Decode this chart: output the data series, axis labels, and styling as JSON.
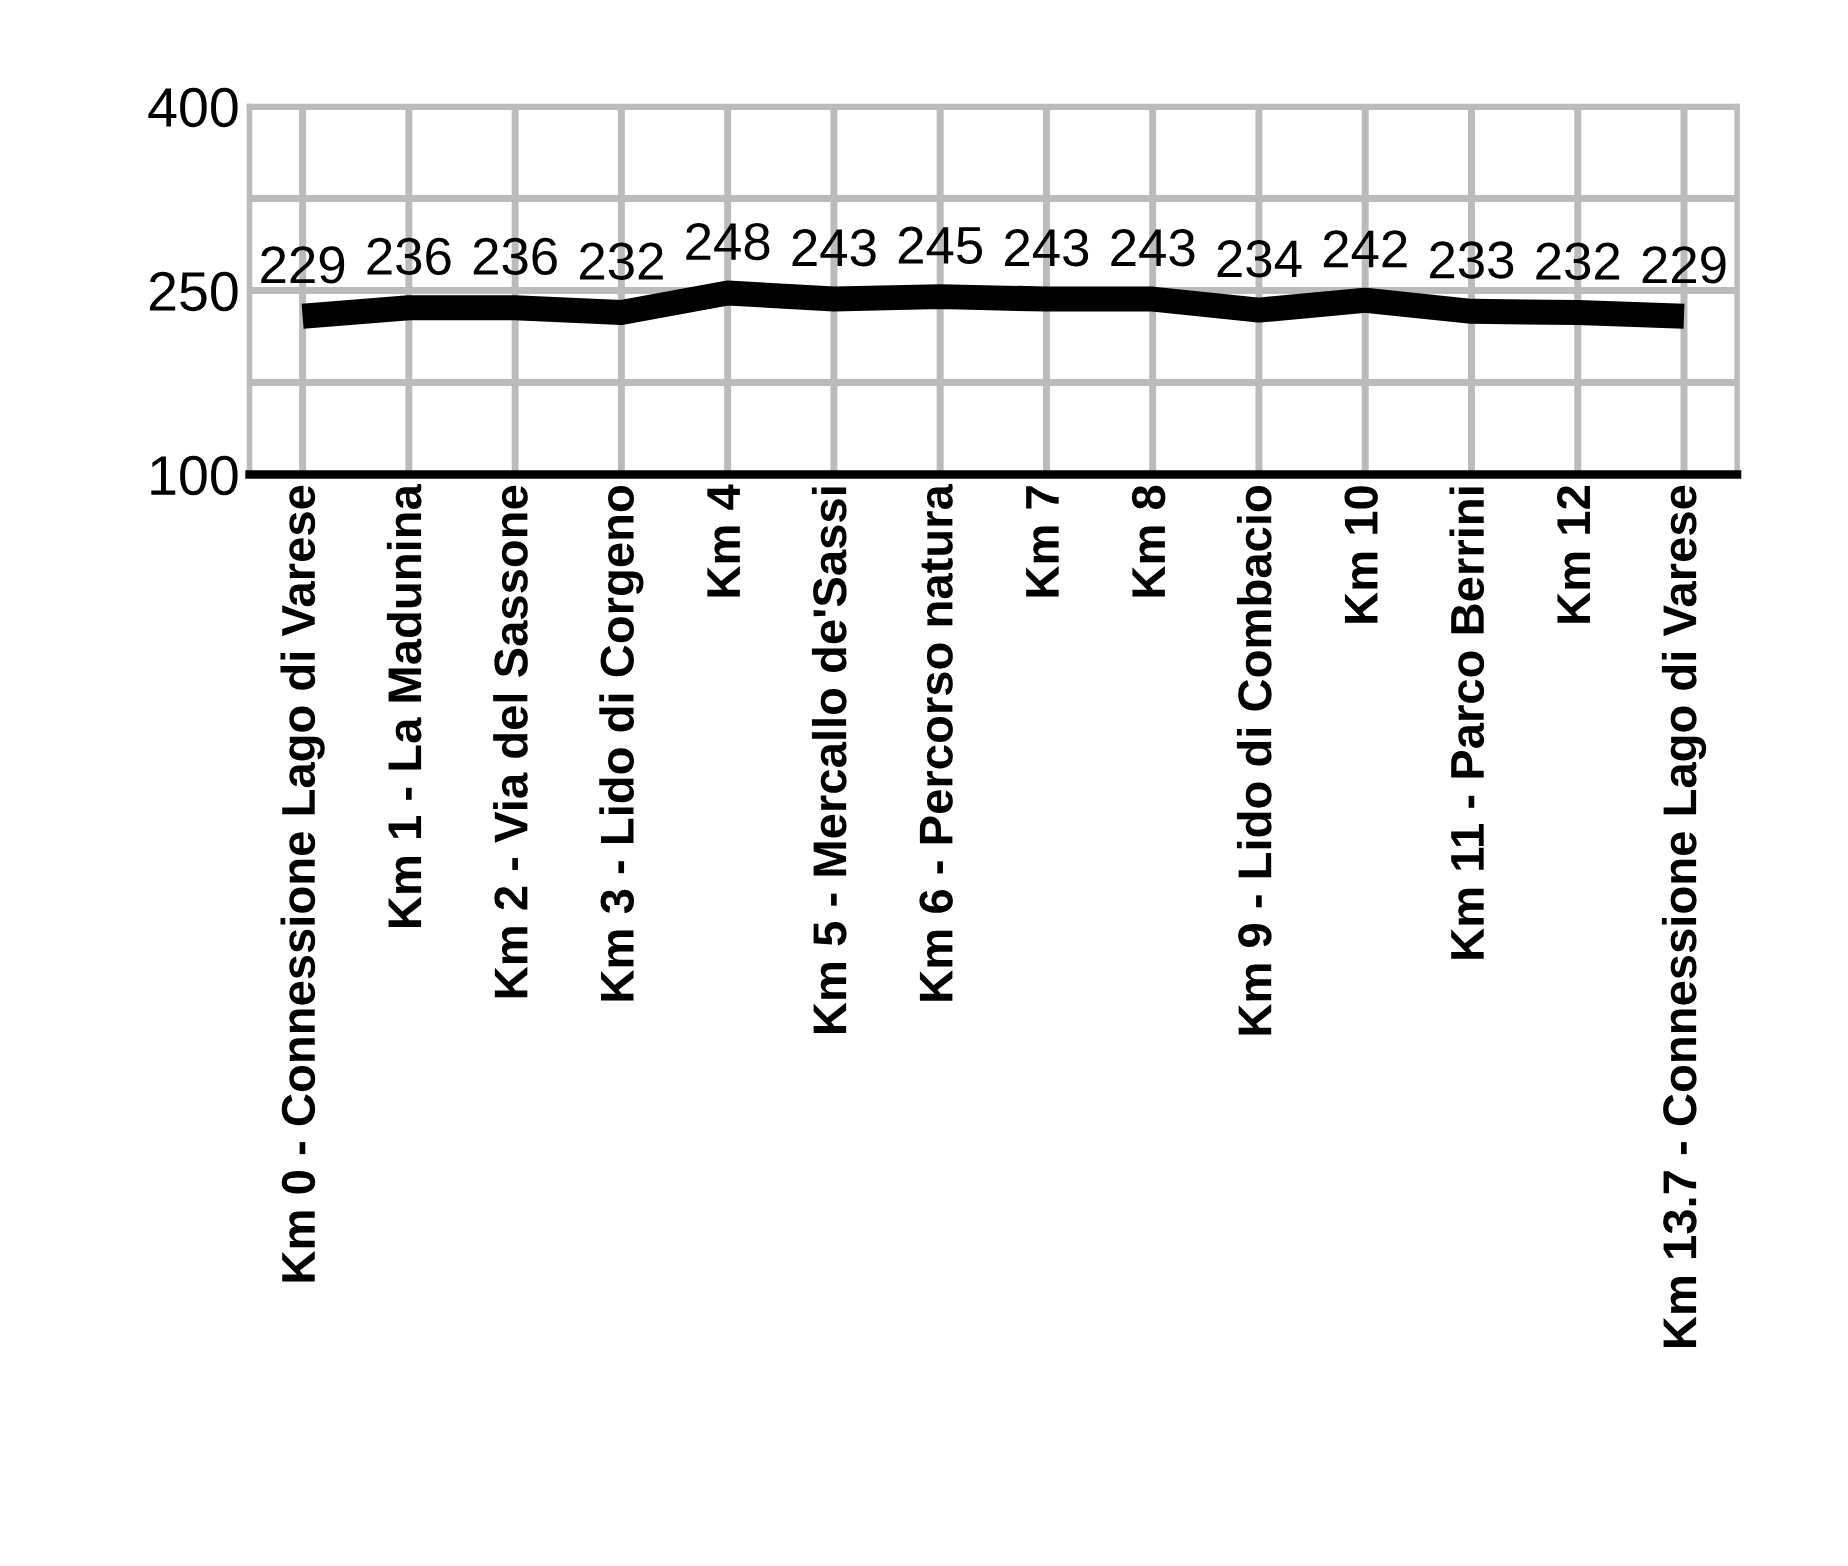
{
  "chart_data": {
    "type": "line",
    "categories": [
      "Km 0 - Connessione Lago di Varese",
      "Km 1 - La Madunina",
      "Km 2 - Via del Sassone",
      "Km 3 - Lido di Corgeno",
      "Km 4",
      "Km 5 - Mercallo de'Sassi",
      "Km 6 - Percorso natura",
      "Km 7",
      "Km 8",
      "Km 9 - Lido di Combacio",
      "Km 10",
      "Km 11 - Parco Berrini",
      "Km 12",
      "Km 13.7 - Connessione Lago di Varese"
    ],
    "series": [
      {
        "color": "#000000",
        "values": [
          229,
          236,
          236,
          232,
          248,
          243,
          245,
          243,
          243,
          234,
          242,
          233,
          232,
          229
        ]
      }
    ],
    "ylim": [
      100,
      400
    ],
    "yticks": [
      100,
      {
        "value": 175,
        "label": null
      },
      250,
      {
        "value": 325,
        "label": null
      },
      400
    ],
    "grid": true,
    "data_labels": true,
    "marker": "none",
    "line_style": "solid"
  }
}
